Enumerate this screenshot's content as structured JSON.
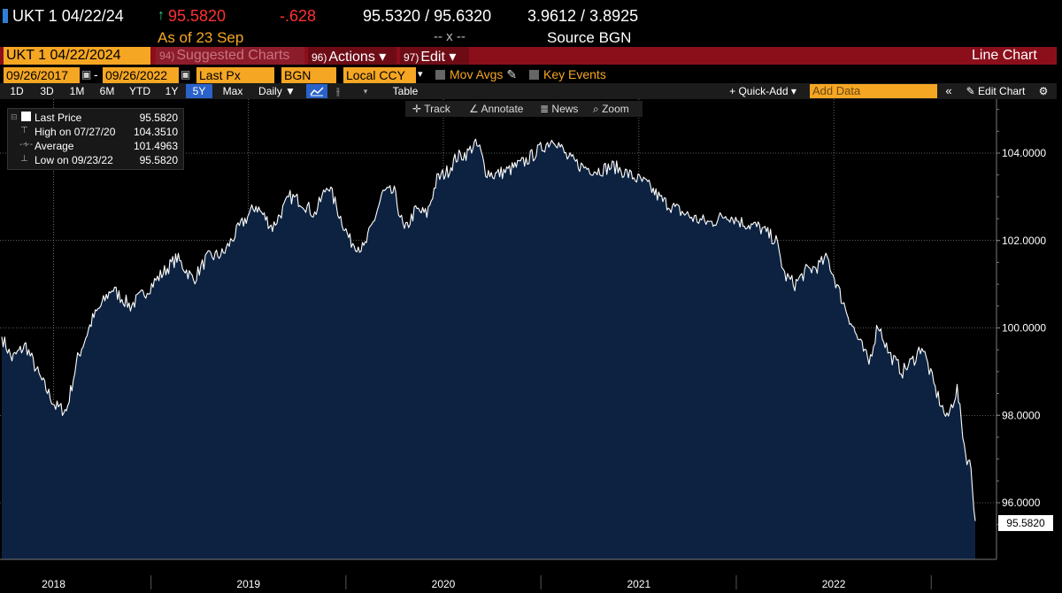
{
  "quote": {
    "ticker": "UKT 1 04/22/24",
    "arrow": "↑",
    "price": "95.5820",
    "change": "-.628",
    "bid_ask": "95.5320 / 95.6320",
    "yields": "3.9612 / 3.8925",
    "as_of": "As of  23 Sep",
    "spread": "-- x --",
    "source": "Source BGN"
  },
  "toolbar2": {
    "security": "UKT 1 04/22/2024",
    "suggested_num": "94)",
    "suggested": "Suggested Charts",
    "actions_num": "96)",
    "actions": "Actions ▾",
    "edit_num": "97)",
    "edit": "Edit ▾",
    "chart_type": "Line Chart"
  },
  "toolbar3": {
    "start_date": "09/26/2017",
    "end_date": "09/26/2022",
    "field": "Last Px",
    "source": "BGN",
    "currency": "Local CCY",
    "mov_avgs": "Mov Avgs",
    "key_events": "Key Events"
  },
  "toolbar4": {
    "periods": [
      "1D",
      "3D",
      "1M",
      "6M",
      "YTD",
      "1Y",
      "5Y",
      "Max"
    ],
    "active_period": "5Y",
    "frequency": "Daily ▼",
    "table": "Table",
    "quick_add": "+ Quick-Add ▾",
    "add_data_placeholder": "Add Data",
    "edit_chart": "✎ Edit Chart"
  },
  "chart_tools": {
    "track": "Track",
    "annotate": "Annotate",
    "news": "News",
    "zoom": "Zoom"
  },
  "legend": {
    "last_label": "Last Price",
    "last_value": "95.5820",
    "high_label": "High on 07/27/20",
    "high_value": "104.3510",
    "avg_label": "Average",
    "avg_value": "101.4963",
    "low_label": "Low on 09/23/22",
    "low_value": "95.5820"
  },
  "last_badge": "95.5820",
  "colors": {
    "accent_orange": "#f5a623",
    "bar_red": "#8b0f1b",
    "area_fill": "#0c2240",
    "price_green": "#35d07f",
    "price_red": "#ff3030"
  },
  "chart_data": {
    "type": "area",
    "title": "",
    "xlabel": "",
    "ylabel": "",
    "x_ticks": [
      "2018",
      "2019",
      "2020",
      "2021",
      "2022"
    ],
    "y_ticks": [
      "96.0000",
      "98.0000",
      "100.0000",
      "102.0000",
      "104.0000"
    ],
    "ylim": [
      94.0,
      105.0
    ],
    "grid": true,
    "series": [
      {
        "name": "Last Price",
        "x": [
          "2017-09-26",
          "2017-10-15",
          "2017-11-10",
          "2017-12-05",
          "2018-01-05",
          "2018-01-25",
          "2018-02-15",
          "2018-03-15",
          "2018-04-20",
          "2018-05-25",
          "2018-06-20",
          "2018-07-20",
          "2018-08-20",
          "2018-09-20",
          "2018-10-15",
          "2018-11-15",
          "2018-12-15",
          "2019-01-15",
          "2019-02-15",
          "2019-03-20",
          "2019-04-10",
          "2019-05-05",
          "2019-05-30",
          "2019-06-20",
          "2019-07-10",
          "2019-08-05",
          "2019-08-25",
          "2019-09-10",
          "2019-10-01",
          "2019-10-20",
          "2019-11-10",
          "2019-12-01",
          "2019-12-20",
          "2020-01-10",
          "2020-01-25",
          "2020-02-15",
          "2020-02-28",
          "2020-03-09",
          "2020-03-20",
          "2020-04-05",
          "2020-05-01",
          "2020-06-01",
          "2020-07-01",
          "2020-07-27",
          "2020-08-20",
          "2020-09-15",
          "2020-10-15",
          "2020-11-15",
          "2020-12-15",
          "2021-01-15",
          "2021-02-15",
          "2021-03-15",
          "2021-04-15",
          "2021-05-15",
          "2021-06-15",
          "2021-07-15",
          "2021-08-15",
          "2021-09-15",
          "2021-10-01",
          "2021-10-20",
          "2021-11-10",
          "2021-12-01",
          "2021-12-20",
          "2022-01-15",
          "2022-02-10",
          "2022-03-08",
          "2022-03-25",
          "2022-04-15",
          "2022-05-10",
          "2022-06-01",
          "2022-06-15",
          "2022-07-10",
          "2022-08-01",
          "2022-08-20",
          "2022-09-05",
          "2022-09-15",
          "2022-09-23"
        ],
        "values": [
          99.8,
          99.3,
          99.6,
          98.9,
          98.2,
          98.1,
          99.3,
          100.2,
          100.9,
          100.5,
          100.8,
          101.2,
          101.6,
          101.1,
          101.6,
          101.7,
          102.3,
          102.8,
          102.3,
          103.0,
          102.9,
          102.6,
          103.3,
          102.6,
          102.0,
          101.8,
          102.5,
          103.1,
          103.1,
          102.2,
          102.7,
          102.6,
          103.4,
          103.6,
          103.9,
          104.0,
          104.2,
          104.1,
          103.6,
          103.5,
          103.6,
          103.8,
          104.1,
          104.35,
          103.9,
          103.7,
          103.6,
          103.7,
          103.5,
          103.3,
          102.9,
          102.7,
          102.5,
          102.4,
          102.6,
          102.4,
          102.3,
          102.0,
          101.2,
          101.0,
          101.3,
          101.4,
          101.6,
          100.7,
          99.9,
          99.2,
          100.1,
          99.4,
          99.0,
          99.3,
          99.6,
          98.6,
          97.9,
          98.6,
          97.1,
          96.8,
          95.58
        ]
      }
    ]
  }
}
